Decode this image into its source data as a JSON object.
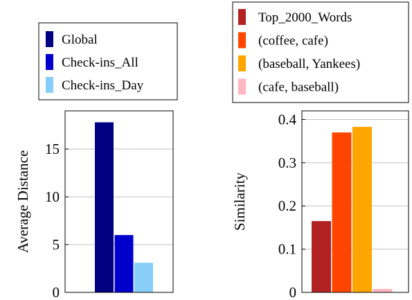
{
  "chart_data": [
    {
      "type": "bar",
      "title": "",
      "xlabel": "",
      "ylabel": "Average Distance",
      "ylim": [
        0,
        19
      ],
      "yticks": [
        0,
        5,
        10,
        15
      ],
      "grid": "horizontal",
      "legend_position": "top",
      "series": [
        {
          "name": "Global",
          "values": [
            17.8
          ],
          "color": "#000080"
        },
        {
          "name": "Check-ins_All",
          "values": [
            6.0
          ],
          "color": "#0000CD"
        },
        {
          "name": "Check-ins_Day",
          "values": [
            3.1
          ],
          "color": "#87CEFA"
        }
      ]
    },
    {
      "type": "bar",
      "title": "",
      "xlabel": "",
      "ylabel": "Similarity",
      "ylim": [
        0,
        0.42
      ],
      "yticks": [
        0,
        0.1,
        0.2,
        0.3,
        0.4
      ],
      "grid": "horizontal",
      "legend_position": "top",
      "series": [
        {
          "name": "Top_2000_Words",
          "values": [
            0.165
          ],
          "color": "#B22222"
        },
        {
          "name": "(coffee, cafe)",
          "values": [
            0.37
          ],
          "color": "#FF4500"
        },
        {
          "name": "(baseball, Yankees)",
          "values": [
            0.383
          ],
          "color": "#FFA500"
        },
        {
          "name": "(cafe, baseball)",
          "values": [
            0.008
          ],
          "color": "#FFB6C1"
        }
      ]
    }
  ]
}
